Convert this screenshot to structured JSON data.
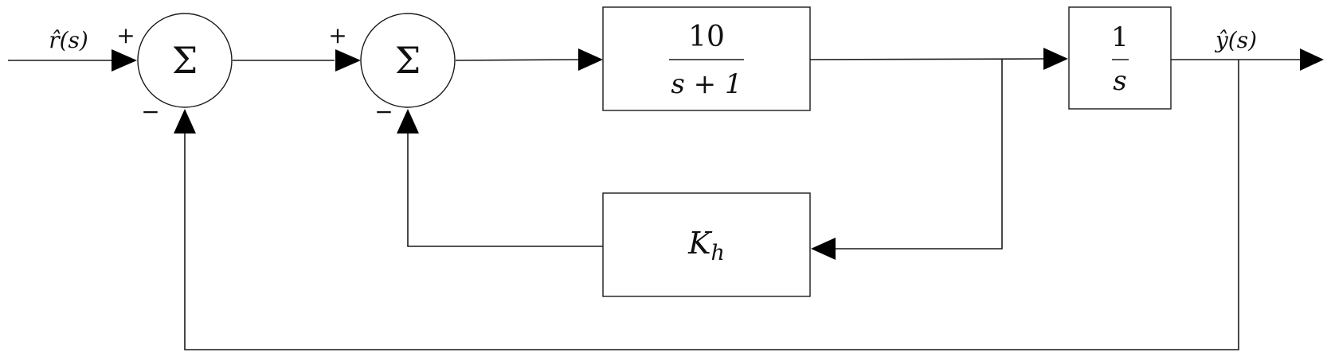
{
  "input_signal": {
    "label": "r̂(s)"
  },
  "output_signal": {
    "label": "ŷ(s)"
  },
  "summing_junction_1": {
    "symbol": "Σ",
    "plus_sign": "+",
    "minus_sign": "−"
  },
  "summing_junction_2": {
    "symbol": "Σ",
    "plus_sign": "+",
    "minus_sign": "−"
  },
  "plant_block": {
    "numerator": "10",
    "denominator": "s + 1"
  },
  "integrator_block": {
    "numerator": "1",
    "denominator": "s"
  },
  "feedback_block": {
    "gain_symbol": "K",
    "gain_subscript": "h"
  }
}
